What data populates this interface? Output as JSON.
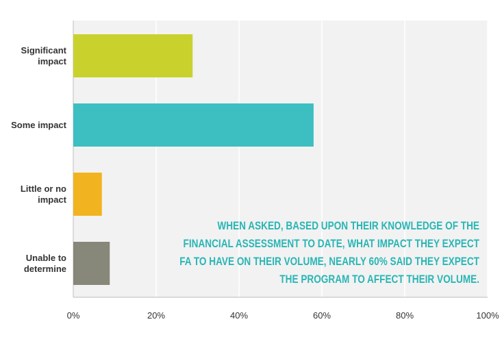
{
  "chart_data": {
    "type": "bar",
    "orientation": "horizontal",
    "categories": [
      "Significant impact",
      "Some impact",
      "Little or no impact",
      "Unable to determine"
    ],
    "values": [
      28.8,
      58,
      6.9,
      8.8
    ],
    "colors": [
      "#c9d22c",
      "#3dbfc1",
      "#f2b320",
      "#87877a"
    ],
    "xlim": [
      0,
      100
    ],
    "xticks": [
      {
        "value": 0,
        "label": "0%"
      },
      {
        "value": 20,
        "label": "20%"
      },
      {
        "value": 40,
        "label": "40%"
      },
      {
        "value": 60,
        "label": "60%"
      },
      {
        "value": 80,
        "label": "80%"
      },
      {
        "value": 100,
        "label": "100%"
      }
    ],
    "grid": true,
    "annotation": "WHEN ASKED, BASED UPON THEIR KNOWLEDGE OF THE FINANCIAL ASSESSMENT TO DATE, WHAT IMPACT THEY EXPECT FA TO HAVE ON THEIR VOLUME, NEARLY 60% SAID THEY EXPECT THE PROGRAM TO AFFECT THEIR VOLUME."
  }
}
